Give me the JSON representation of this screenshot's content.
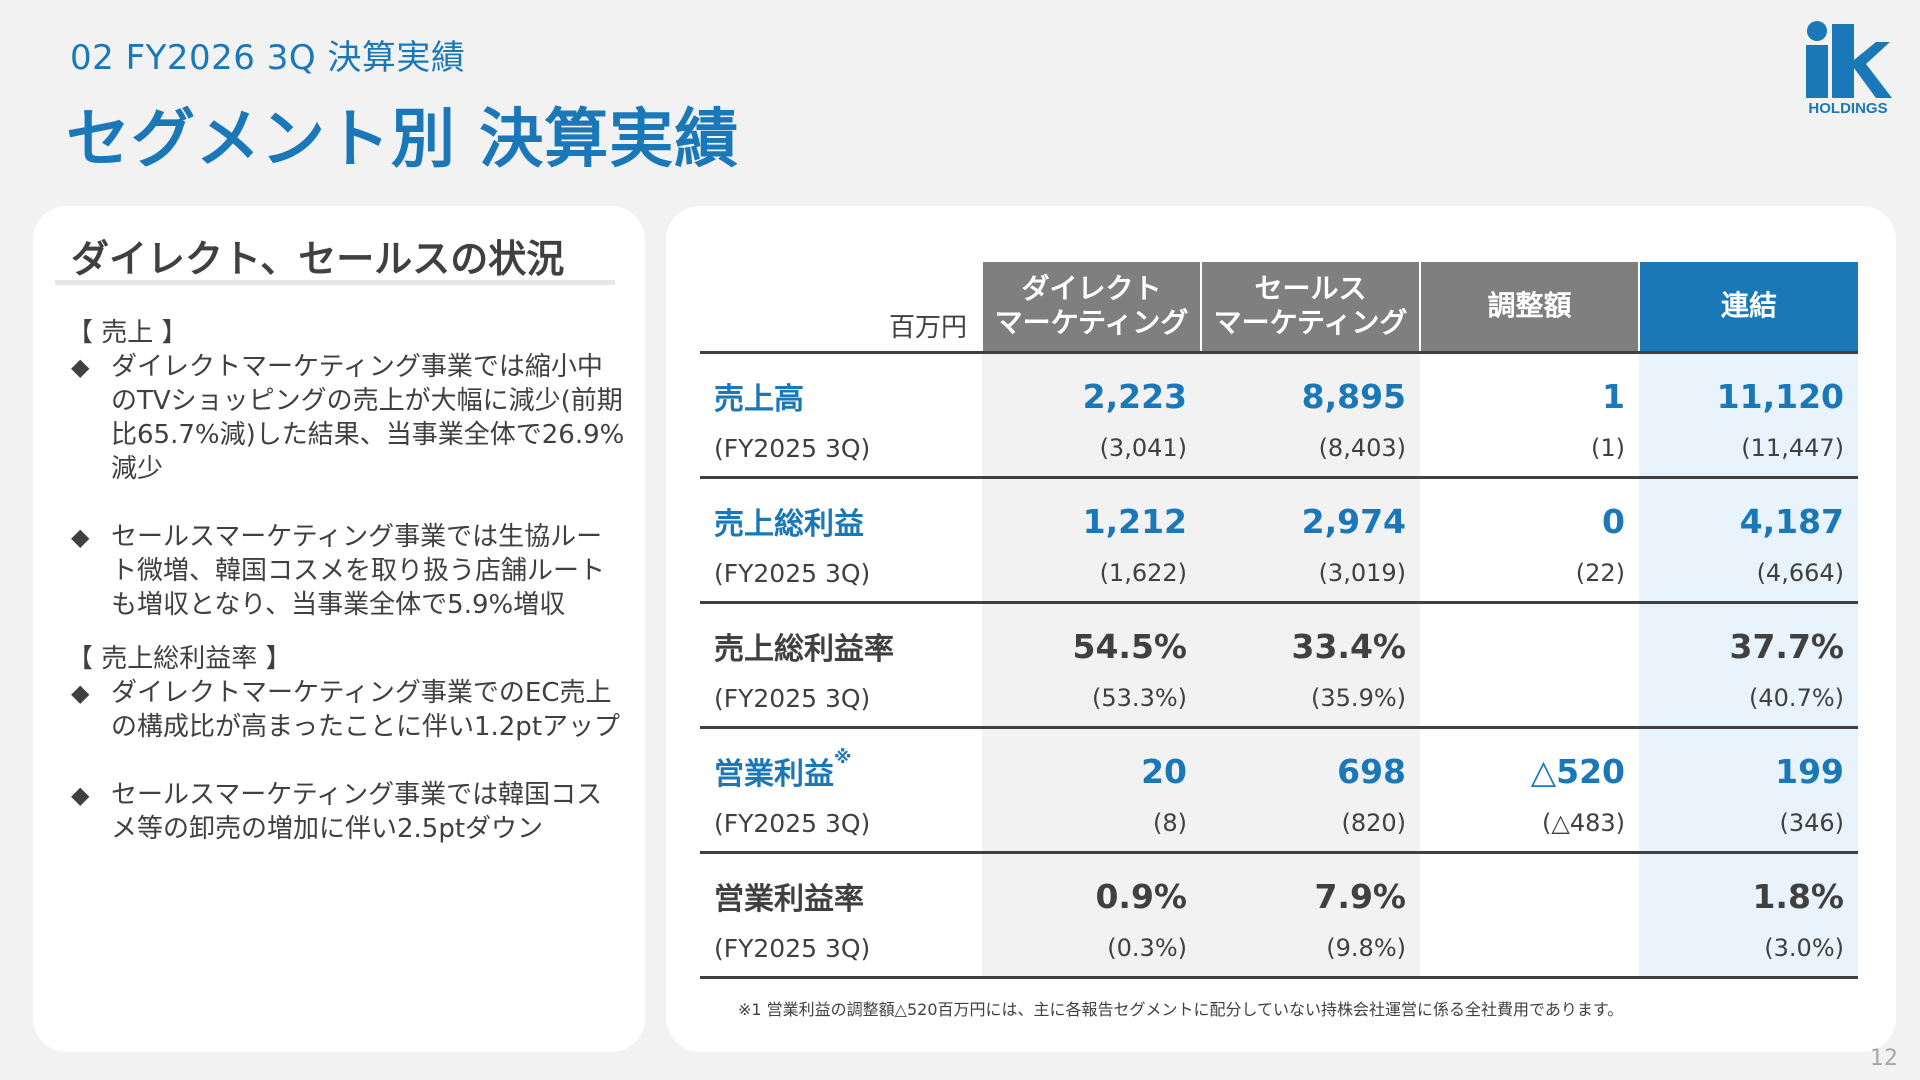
{
  "header": {
    "subtitle": "02  FY2026 3Q 決算実績",
    "title": "セグメント別 決算実績"
  },
  "logo": {
    "name": "ik-holdings-logo",
    "text": "HOLDINGS",
    "color": "#1a78b8"
  },
  "left_panel": {
    "title": "ダイレクト、セールスの状況",
    "sections": [
      {
        "heading": "【 売上 】",
        "bullets": [
          "ダイレクトマーケティング事業では縮小中のTVショッピングの売上が大幅に減少(前期比65.7%減)した結果、当事業全体で26.9%減少",
          "セールスマーケティング事業では生協ルート微増、韓国コスメを取り扱う店舗ルートも増収となり、当事業全体で5.9%増収"
        ]
      },
      {
        "heading": "【 売上総利益率 】",
        "bullets": [
          "ダイレクトマーケティング事業でのEC売上の構成比が高まったことに伴い1.2ptアップ",
          "セールスマーケティング事業では韓国コスメ等の卸売の増加に伴い2.5ptダウン"
        ]
      }
    ],
    "bullet_glyph": "◆"
  },
  "table": {
    "unit": "百万円",
    "headers": {
      "direct": "ダイレクト\nマーケティング",
      "sales": "セールス\nマーケティング",
      "adjust": "調整額",
      "consolidated": "連結"
    },
    "rows": [
      {
        "label": "売上高",
        "note": "",
        "values": [
          "2,223",
          "8,895",
          "1",
          "11,120"
        ],
        "prev_label": "(FY2025 3Q)",
        "prev": [
          "(3,041)",
          "(8,403)",
          "(1)",
          "(11,447)"
        ],
        "highlight": true
      },
      {
        "label": "売上総利益",
        "note": "",
        "values": [
          "1,212",
          "2,974",
          "0",
          "4,187"
        ],
        "prev_label": "(FY2025 3Q)",
        "prev": [
          "(1,622)",
          "(3,019)",
          "(22)",
          "(4,664)"
        ],
        "highlight": true
      },
      {
        "label": "売上総利益率",
        "note": "",
        "values": [
          "54.5%",
          "33.4%",
          "",
          "37.7%"
        ],
        "prev_label": "(FY2025 3Q)",
        "prev": [
          "(53.3%)",
          "(35.9%)",
          "",
          "(40.7%)"
        ],
        "highlight": false
      },
      {
        "label": "営業利益",
        "note": "※",
        "values": [
          "20",
          "698",
          "△520",
          "199"
        ],
        "prev_label": "(FY2025 3Q)",
        "prev": [
          "(8)",
          "(820)",
          "(△483)",
          "(346)"
        ],
        "highlight": true
      },
      {
        "label": "営業利益率",
        "note": "",
        "values": [
          "0.9%",
          "7.9%",
          "",
          "1.8%"
        ],
        "prev_label": "(FY2025 3Q)",
        "prev": [
          "(0.3%)",
          "(9.8%)",
          "",
          "(3.0%)"
        ],
        "highlight": false
      }
    ],
    "footnote": "※1  営業利益の調整額△520百万円には、主に各報告セグメントに配分していない持株会社運営に係る全社費用であります。"
  },
  "page_number": "12",
  "colors": {
    "accent": "#1a78b8",
    "header_gray": "#7f7f7f",
    "col_gray": "#f2f2f2",
    "col_blue": "#e8f3fb"
  }
}
